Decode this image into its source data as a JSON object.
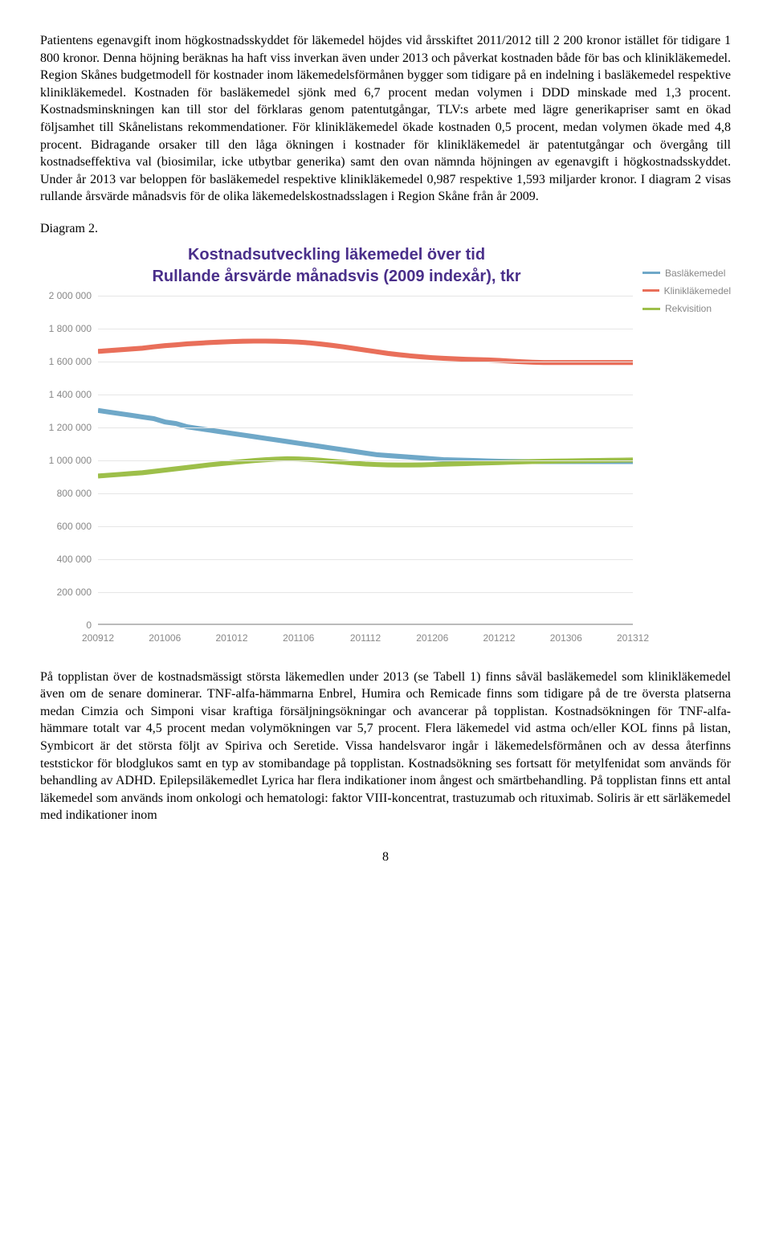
{
  "paragraph1": "Patientens egenavgift inom högkostnadsskyddet för läkemedel höjdes vid årsskiftet 2011/2012 till 2 200 kronor istället för tidigare 1 800 kronor. Denna höjning beräknas ha haft viss inverkan även under 2013 och påverkat kostnaden både för bas och klinikläkemedel. Region Skånes budgetmodell för kostnader inom läkemedelsförmånen bygger som tidigare på en indelning i basläkemedel respektive klinikläkemedel. Kostnaden för basläkemedel sjönk med 6,7 procent medan volymen i DDD minskade med 1,3 procent. Kostnadsminskningen kan till stor del förklaras genom patentutgångar, TLV:s arbete med lägre generikapriser samt en ökad följsamhet till Skånelistans rekommendationer. För klinikläkemedel ökade kostnaden 0,5 procent, medan volymen ökade med 4,8 procent. Bidragande orsaker till den låga ökningen i kostnader för klinikläkemedel är patentutgångar och övergång till kostnadseffektiva val (biosimilar, icke utbytbar generika) samt den ovan nämnda höjningen av egenavgift i högkostnadsskyddet. Under år 2013 var beloppen för basläkemedel respektive klinikläkemedel 0,987 respektive 1,593 miljarder kronor. I diagram 2 visas rullande årsvärde månadsvis för de olika läkemedelskostnadsslagen i Region Skåne från år 2009.",
  "diagram_label": "Diagram 2.",
  "paragraph2": "På topplistan över de kostnadsmässigt största läkemedlen under 2013 (se Tabell 1) finns såväl basläkemedel som klinikläkemedel även om de senare dominerar. TNF-alfa-hämmarna Enbrel, Humira och Remicade finns som tidigare på de tre översta platserna medan Cimzia och Simponi visar kraftiga försäljningsökningar och avancerar på topplistan. Kostnadsökningen för TNF-alfa-hämmare totalt var 4,5 procent medan volymökningen var 5,7 procent. Flera läkemedel vid astma och/eller KOL finns på listan, Symbicort är det största följt av Spiriva och Seretide. Vissa handelsvaror ingår i läkemedelsförmånen och av dessa återfinns teststickor för blodglukos samt en typ av stomibandage på topplistan. Kostnadsökning ses fortsatt för metylfenidat som används för behandling av ADHD. Epilepsiläkemedlet Lyrica har flera indikationer inom ångest och smärtbehandling. På topplistan finns ett antal läkemedel som används inom onkologi och hematologi: faktor VIII-koncentrat, trastuzumab och rituximab. Soliris är ett särläkemedel med indikationer inom",
  "page_number": "8",
  "chart": {
    "type": "line",
    "title_line1": "Kostnadsutveckling  läkemedel över tid",
    "title_line2": "Rullande årsvärde månadsvis (2009 indexår), tkr",
    "title_color": "#4a2f8a",
    "background_color": "#ffffff",
    "grid_color": "#e6e6e6",
    "axis_color": "#bbbbbb",
    "tick_label_color": "#888888",
    "tick_fontsize": 12,
    "title_fontsize": 20,
    "ylim": [
      0,
      2000000
    ],
    "ytick_step": 200000,
    "y_ticks": [
      "0",
      "200 000",
      "400 000",
      "600 000",
      "800 000",
      "1 000 000",
      "1 200 000",
      "1 400 000",
      "1 600 000",
      "1 800 000",
      "2 000 000"
    ],
    "x_labels": [
      "200912",
      "201006",
      "201012",
      "201106",
      "201112",
      "201206",
      "201212",
      "201306",
      "201312"
    ],
    "line_width": 2.5,
    "series": [
      {
        "name": "Basläkemedel",
        "color": "#6fa8c8",
        "values": [
          1300000,
          1290000,
          1280000,
          1270000,
          1260000,
          1250000,
          1230000,
          1220000,
          1200000,
          1190000,
          1180000,
          1170000,
          1160000,
          1150000,
          1140000,
          1130000,
          1120000,
          1110000,
          1100000,
          1090000,
          1080000,
          1070000,
          1060000,
          1050000,
          1040000,
          1030000,
          1025000,
          1020000,
          1015000,
          1010000,
          1005000,
          1000000,
          998000,
          996000,
          994000,
          992000,
          990000,
          989000,
          988000,
          988000,
          988000,
          988000,
          988000,
          988000,
          988000,
          988000,
          988000,
          988000,
          988000
        ]
      },
      {
        "name": "Klinikläkemedel",
        "color": "#e96f5a",
        "values": [
          1660000,
          1665000,
          1670000,
          1675000,
          1680000,
          1688000,
          1695000,
          1700000,
          1706000,
          1710000,
          1714000,
          1717000,
          1720000,
          1722000,
          1723000,
          1723000,
          1722000,
          1720000,
          1717000,
          1712000,
          1705000,
          1697000,
          1688000,
          1678000,
          1668000,
          1658000,
          1648000,
          1640000,
          1633000,
          1627000,
          1622000,
          1618000,
          1615000,
          1612000,
          1610000,
          1608000,
          1605000,
          1601000,
          1597000,
          1594000,
          1592000,
          1592000,
          1592000,
          1592000,
          1592000,
          1592000,
          1592000,
          1592000,
          1592000
        ]
      },
      {
        "name": "Rekvisition",
        "color": "#9dbf4a",
        "values": [
          900000,
          905000,
          910000,
          915000,
          920000,
          928000,
          936000,
          944000,
          952000,
          960000,
          968000,
          975000,
          982000,
          988000,
          994000,
          999000,
          1003000,
          1005000,
          1004000,
          1001000,
          996000,
          990000,
          984000,
          978000,
          973000,
          970000,
          968000,
          967000,
          967000,
          968000,
          970000,
          972000,
          974000,
          976000,
          978000,
          980000,
          982000,
          984000,
          986000,
          988000,
          990000,
          991000,
          992000,
          993000,
          994000,
          995000,
          996000,
          997000,
          998000
        ]
      }
    ]
  }
}
